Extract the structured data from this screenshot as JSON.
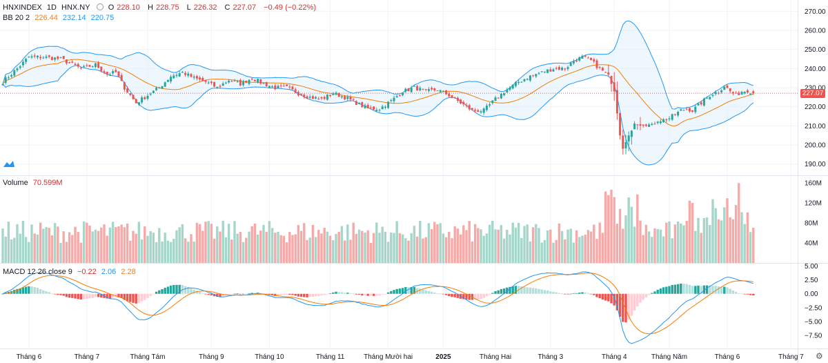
{
  "header": {
    "symbol": "HNXINDEX",
    "interval": "1D",
    "exchange": "HNX.NY",
    "o_label": "O",
    "o_value": "228.10",
    "h_label": "H",
    "h_value": "228.75",
    "l_label": "L",
    "l_value": "226.32",
    "c_label": "C",
    "c_value": "227.07",
    "change": "−0.49 (−0.22%)"
  },
  "bb_legend": {
    "label": "BB 20 2",
    "basis": "226.44",
    "upper": "232.14",
    "lower": "220.75"
  },
  "volume_legend": {
    "label": "Volume",
    "value": "70.599M"
  },
  "macd_legend": {
    "label": "MACD 12 26 close 9",
    "hist": "−0.22",
    "macd": "2.06",
    "signal": "2.28"
  },
  "current_price_label": "227.07",
  "colors": {
    "up": "#26a69a",
    "down": "#ef5350",
    "basis": "#f57c00",
    "band": "#2196f3",
    "band_fill": "#e3f2fd",
    "macd": "#2196f3",
    "signal": "#f57c00"
  },
  "chart_data": {
    "type": "candlestick",
    "price_axis": {
      "ylim": [
        187,
        273
      ],
      "ticks": [
        "270.00",
        "260.00",
        "250.00",
        "240.00",
        "230.00",
        "220.00",
        "210.00",
        "200.00",
        "190.00"
      ]
    },
    "volume_axis": {
      "ylim": [
        0,
        170
      ],
      "unit": "M",
      "ticks": [
        "160M",
        "120M",
        "80M",
        "40M"
      ]
    },
    "macd_axis": {
      "ylim": [
        -9.5,
        5.2
      ],
      "ticks": [
        "5.00",
        "2.50",
        "0.00",
        "−2.50",
        "−5.00",
        "−7.50"
      ]
    },
    "time_labels": [
      "Tháng 6",
      "Tháng 7",
      "Tháng Tám",
      "Tháng 9",
      "Tháng 10",
      "Tháng 11",
      "Tháng Mười hai",
      "2025",
      "Tháng Hai",
      "Tháng 3",
      "Tháng 4",
      "Tháng Năm",
      "Tháng 6",
      "Tháng 7"
    ],
    "time_label_index": [
      9,
      29,
      50,
      72,
      92,
      113,
      133,
      152,
      170,
      189,
      211,
      230,
      250,
      272
    ],
    "close_anchors": [
      [
        0,
        233
      ],
      [
        5,
        240
      ],
      [
        9,
        246
      ],
      [
        14,
        246
      ],
      [
        20,
        245
      ],
      [
        27,
        240
      ],
      [
        32,
        242
      ],
      [
        36,
        237
      ],
      [
        39,
        238
      ],
      [
        42,
        230
      ],
      [
        46,
        222
      ],
      [
        50,
        226
      ],
      [
        54,
        230
      ],
      [
        58,
        236
      ],
      [
        62,
        238
      ],
      [
        66,
        235
      ],
      [
        70,
        233
      ],
      [
        74,
        230
      ],
      [
        78,
        234
      ],
      [
        82,
        232
      ],
      [
        86,
        235
      ],
      [
        90,
        232
      ],
      [
        94,
        230
      ],
      [
        98,
        230
      ],
      [
        102,
        227
      ],
      [
        106,
        225
      ],
      [
        110,
        224
      ],
      [
        114,
        227
      ],
      [
        118,
        225
      ],
      [
        122,
        222
      ],
      [
        126,
        219
      ],
      [
        130,
        219
      ],
      [
        134,
        223
      ],
      [
        138,
        228
      ],
      [
        142,
        230
      ],
      [
        146,
        228
      ],
      [
        150,
        229
      ],
      [
        154,
        226
      ],
      [
        158,
        222
      ],
      [
        162,
        218
      ],
      [
        166,
        218
      ],
      [
        170,
        224
      ],
      [
        174,
        229
      ],
      [
        178,
        233
      ],
      [
        182,
        236
      ],
      [
        186,
        238
      ],
      [
        190,
        240
      ],
      [
        194,
        240
      ],
      [
        197,
        244
      ],
      [
        200,
        246
      ],
      [
        203,
        244
      ],
      [
        206,
        240
      ],
      [
        209,
        236
      ],
      [
        211,
        228
      ],
      [
        213,
        205
      ],
      [
        214,
        198
      ],
      [
        216,
        205
      ],
      [
        218,
        212
      ],
      [
        220,
        211
      ],
      [
        222,
        211
      ],
      [
        224,
        210
      ],
      [
        226,
        213
      ],
      [
        228,
        213
      ],
      [
        230,
        214
      ],
      [
        234,
        218
      ],
      [
        236,
        219
      ],
      [
        238,
        218
      ],
      [
        241,
        222
      ],
      [
        244,
        226
      ],
      [
        247,
        228
      ],
      [
        249,
        231
      ],
      [
        251,
        228
      ],
      [
        253,
        226
      ],
      [
        255,
        228
      ],
      [
        257,
        228.5
      ],
      [
        259,
        227.07
      ]
    ]
  }
}
